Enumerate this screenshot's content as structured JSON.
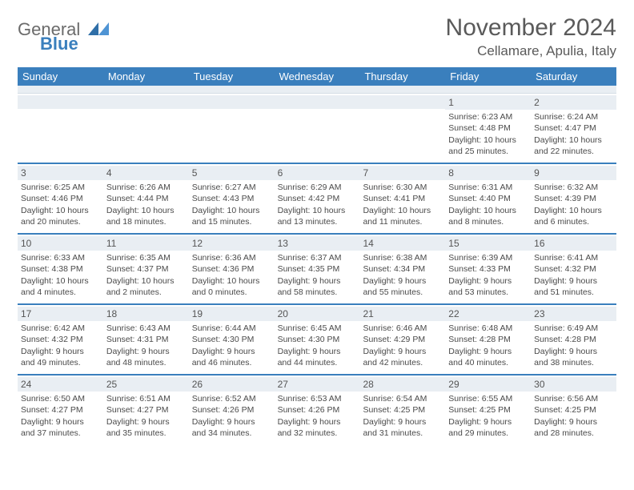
{
  "brand": {
    "word1": "General",
    "word2": "Blue"
  },
  "title": "November 2024",
  "location": "Cellamare, Apulia, Italy",
  "colors": {
    "header_blue": "#3a7fbd",
    "strip_gray": "#e9eef3",
    "text_gray": "#5a5a5a",
    "body_text": "#4a4a4a"
  },
  "weekdays": [
    "Sunday",
    "Monday",
    "Tuesday",
    "Wednesday",
    "Thursday",
    "Friday",
    "Saturday"
  ],
  "weeks": [
    [
      {
        "empty": true
      },
      {
        "empty": true
      },
      {
        "empty": true
      },
      {
        "empty": true
      },
      {
        "empty": true
      },
      {
        "day": "1",
        "sunrise": "Sunrise: 6:23 AM",
        "sunset": "Sunset: 4:48 PM",
        "daylight1": "Daylight: 10 hours",
        "daylight2": "and 25 minutes."
      },
      {
        "day": "2",
        "sunrise": "Sunrise: 6:24 AM",
        "sunset": "Sunset: 4:47 PM",
        "daylight1": "Daylight: 10 hours",
        "daylight2": "and 22 minutes."
      }
    ],
    [
      {
        "day": "3",
        "sunrise": "Sunrise: 6:25 AM",
        "sunset": "Sunset: 4:46 PM",
        "daylight1": "Daylight: 10 hours",
        "daylight2": "and 20 minutes."
      },
      {
        "day": "4",
        "sunrise": "Sunrise: 6:26 AM",
        "sunset": "Sunset: 4:44 PM",
        "daylight1": "Daylight: 10 hours",
        "daylight2": "and 18 minutes."
      },
      {
        "day": "5",
        "sunrise": "Sunrise: 6:27 AM",
        "sunset": "Sunset: 4:43 PM",
        "daylight1": "Daylight: 10 hours",
        "daylight2": "and 15 minutes."
      },
      {
        "day": "6",
        "sunrise": "Sunrise: 6:29 AM",
        "sunset": "Sunset: 4:42 PM",
        "daylight1": "Daylight: 10 hours",
        "daylight2": "and 13 minutes."
      },
      {
        "day": "7",
        "sunrise": "Sunrise: 6:30 AM",
        "sunset": "Sunset: 4:41 PM",
        "daylight1": "Daylight: 10 hours",
        "daylight2": "and 11 minutes."
      },
      {
        "day": "8",
        "sunrise": "Sunrise: 6:31 AM",
        "sunset": "Sunset: 4:40 PM",
        "daylight1": "Daylight: 10 hours",
        "daylight2": "and 8 minutes."
      },
      {
        "day": "9",
        "sunrise": "Sunrise: 6:32 AM",
        "sunset": "Sunset: 4:39 PM",
        "daylight1": "Daylight: 10 hours",
        "daylight2": "and 6 minutes."
      }
    ],
    [
      {
        "day": "10",
        "sunrise": "Sunrise: 6:33 AM",
        "sunset": "Sunset: 4:38 PM",
        "daylight1": "Daylight: 10 hours",
        "daylight2": "and 4 minutes."
      },
      {
        "day": "11",
        "sunrise": "Sunrise: 6:35 AM",
        "sunset": "Sunset: 4:37 PM",
        "daylight1": "Daylight: 10 hours",
        "daylight2": "and 2 minutes."
      },
      {
        "day": "12",
        "sunrise": "Sunrise: 6:36 AM",
        "sunset": "Sunset: 4:36 PM",
        "daylight1": "Daylight: 10 hours",
        "daylight2": "and 0 minutes."
      },
      {
        "day": "13",
        "sunrise": "Sunrise: 6:37 AM",
        "sunset": "Sunset: 4:35 PM",
        "daylight1": "Daylight: 9 hours",
        "daylight2": "and 58 minutes."
      },
      {
        "day": "14",
        "sunrise": "Sunrise: 6:38 AM",
        "sunset": "Sunset: 4:34 PM",
        "daylight1": "Daylight: 9 hours",
        "daylight2": "and 55 minutes."
      },
      {
        "day": "15",
        "sunrise": "Sunrise: 6:39 AM",
        "sunset": "Sunset: 4:33 PM",
        "daylight1": "Daylight: 9 hours",
        "daylight2": "and 53 minutes."
      },
      {
        "day": "16",
        "sunrise": "Sunrise: 6:41 AM",
        "sunset": "Sunset: 4:32 PM",
        "daylight1": "Daylight: 9 hours",
        "daylight2": "and 51 minutes."
      }
    ],
    [
      {
        "day": "17",
        "sunrise": "Sunrise: 6:42 AM",
        "sunset": "Sunset: 4:32 PM",
        "daylight1": "Daylight: 9 hours",
        "daylight2": "and 49 minutes."
      },
      {
        "day": "18",
        "sunrise": "Sunrise: 6:43 AM",
        "sunset": "Sunset: 4:31 PM",
        "daylight1": "Daylight: 9 hours",
        "daylight2": "and 48 minutes."
      },
      {
        "day": "19",
        "sunrise": "Sunrise: 6:44 AM",
        "sunset": "Sunset: 4:30 PM",
        "daylight1": "Daylight: 9 hours",
        "daylight2": "and 46 minutes."
      },
      {
        "day": "20",
        "sunrise": "Sunrise: 6:45 AM",
        "sunset": "Sunset: 4:30 PM",
        "daylight1": "Daylight: 9 hours",
        "daylight2": "and 44 minutes."
      },
      {
        "day": "21",
        "sunrise": "Sunrise: 6:46 AM",
        "sunset": "Sunset: 4:29 PM",
        "daylight1": "Daylight: 9 hours",
        "daylight2": "and 42 minutes."
      },
      {
        "day": "22",
        "sunrise": "Sunrise: 6:48 AM",
        "sunset": "Sunset: 4:28 PM",
        "daylight1": "Daylight: 9 hours",
        "daylight2": "and 40 minutes."
      },
      {
        "day": "23",
        "sunrise": "Sunrise: 6:49 AM",
        "sunset": "Sunset: 4:28 PM",
        "daylight1": "Daylight: 9 hours",
        "daylight2": "and 38 minutes."
      }
    ],
    [
      {
        "day": "24",
        "sunrise": "Sunrise: 6:50 AM",
        "sunset": "Sunset: 4:27 PM",
        "daylight1": "Daylight: 9 hours",
        "daylight2": "and 37 minutes."
      },
      {
        "day": "25",
        "sunrise": "Sunrise: 6:51 AM",
        "sunset": "Sunset: 4:27 PM",
        "daylight1": "Daylight: 9 hours",
        "daylight2": "and 35 minutes."
      },
      {
        "day": "26",
        "sunrise": "Sunrise: 6:52 AM",
        "sunset": "Sunset: 4:26 PM",
        "daylight1": "Daylight: 9 hours",
        "daylight2": "and 34 minutes."
      },
      {
        "day": "27",
        "sunrise": "Sunrise: 6:53 AM",
        "sunset": "Sunset: 4:26 PM",
        "daylight1": "Daylight: 9 hours",
        "daylight2": "and 32 minutes."
      },
      {
        "day": "28",
        "sunrise": "Sunrise: 6:54 AM",
        "sunset": "Sunset: 4:25 PM",
        "daylight1": "Daylight: 9 hours",
        "daylight2": "and 31 minutes."
      },
      {
        "day": "29",
        "sunrise": "Sunrise: 6:55 AM",
        "sunset": "Sunset: 4:25 PM",
        "daylight1": "Daylight: 9 hours",
        "daylight2": "and 29 minutes."
      },
      {
        "day": "30",
        "sunrise": "Sunrise: 6:56 AM",
        "sunset": "Sunset: 4:25 PM",
        "daylight1": "Daylight: 9 hours",
        "daylight2": "and 28 minutes."
      }
    ]
  ]
}
